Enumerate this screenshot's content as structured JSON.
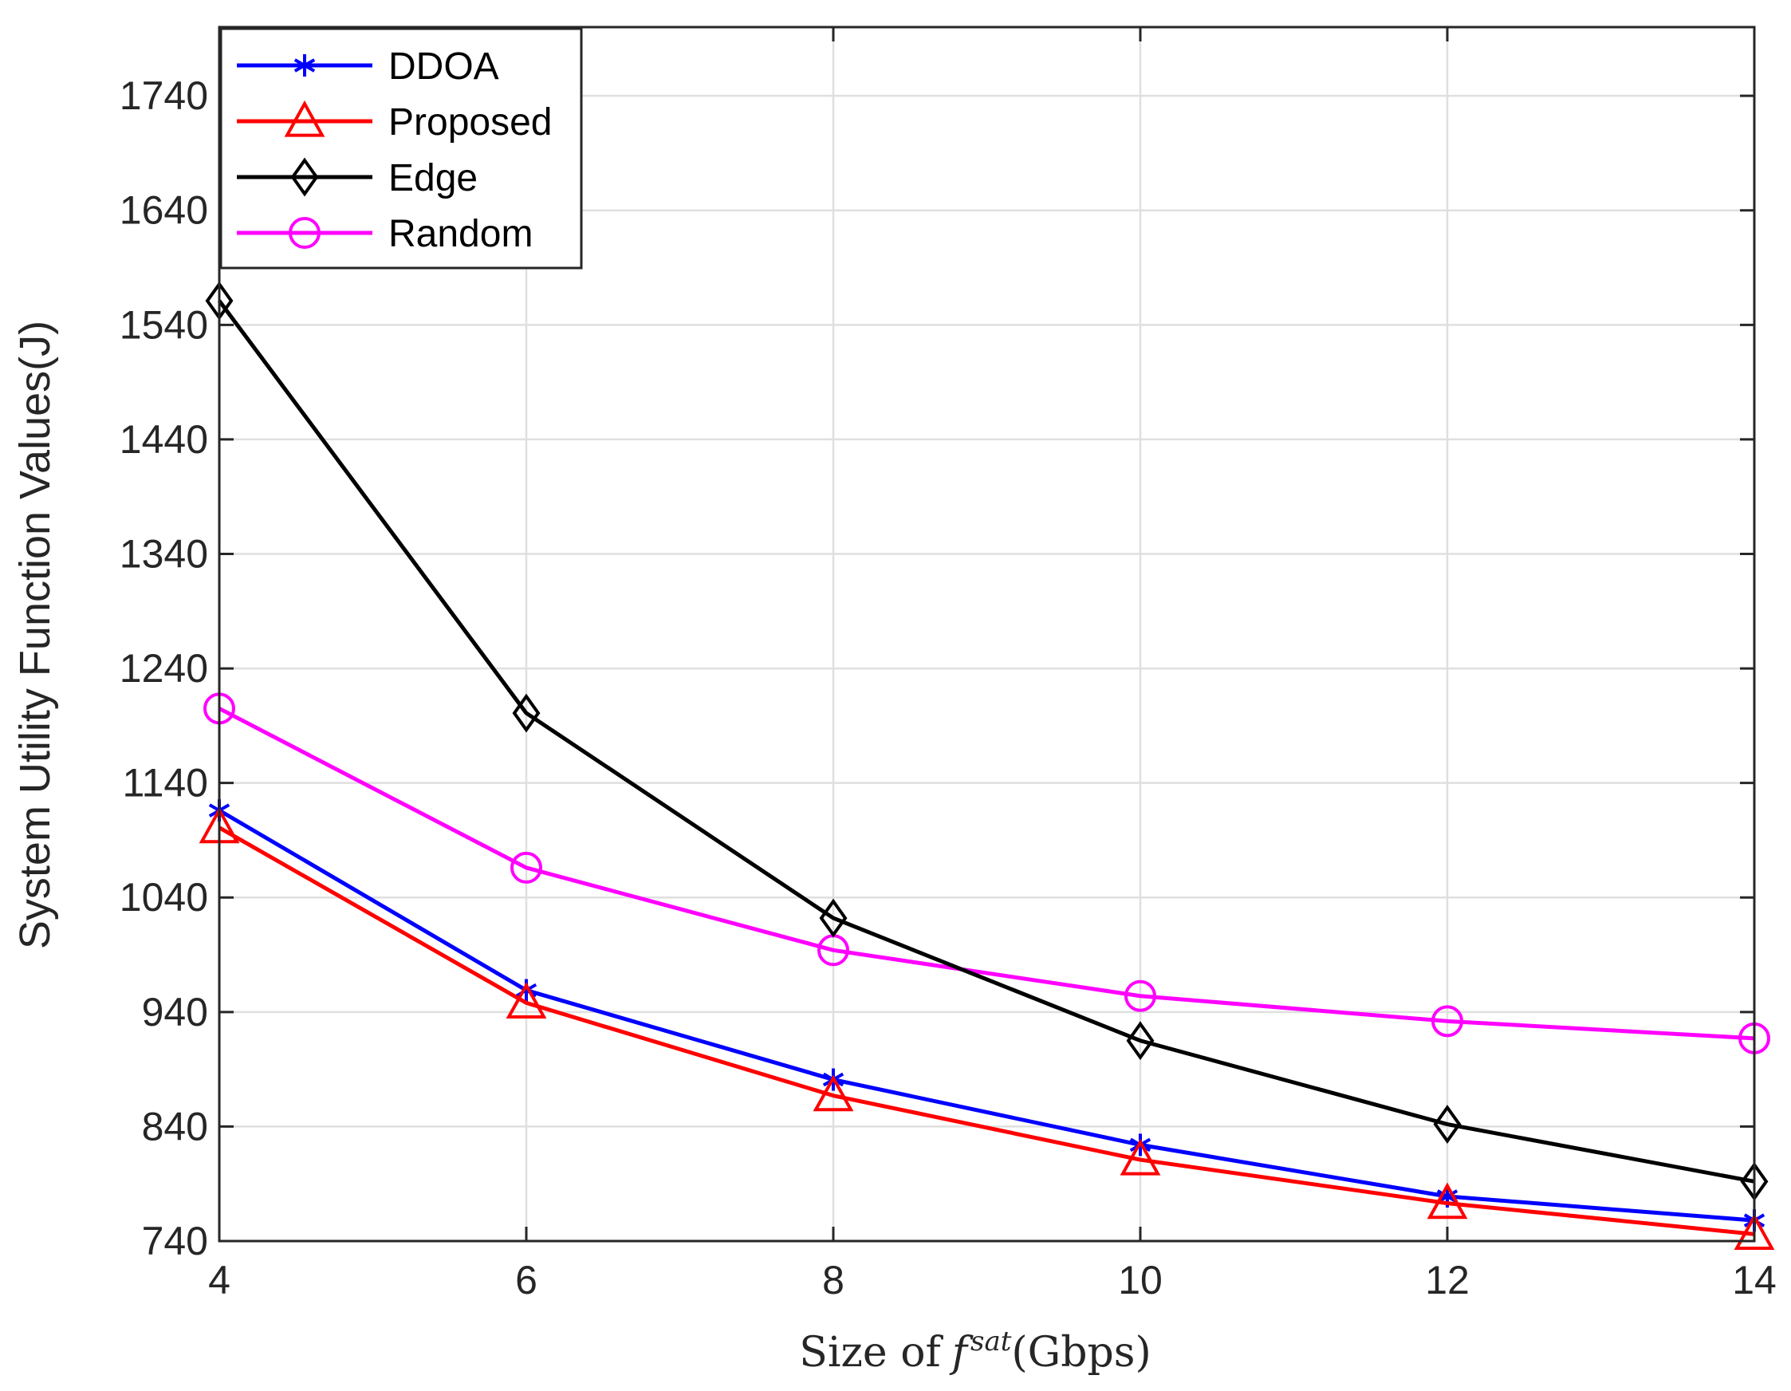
{
  "chart_data": {
    "type": "line",
    "title": "",
    "xlabel": "Size of",
    "xlabel_math": "f",
    "xlabel_superscript": "sat",
    "xlabel_unit": "(Gbps)",
    "ylabel": "System Utility Function Values(J)",
    "xlim": [
      4,
      14
    ],
    "ylim": [
      740,
      1800
    ],
    "xticks": [
      "4",
      "6",
      "8",
      "10",
      "12",
      "14"
    ],
    "yticks": [
      "740",
      "840",
      "940",
      "1040",
      "1140",
      "1240",
      "1340",
      "1440",
      "1540",
      "1640",
      "1740"
    ],
    "x": [
      4,
      6,
      8,
      10,
      12,
      14
    ],
    "grid": true,
    "legend_position": "top-left",
    "series": [
      {
        "name": "DDOA",
        "color": "#0000ff",
        "marker": "asterisk",
        "values": [
          1116,
          959,
          881,
          824,
          779,
          758
        ]
      },
      {
        "name": "Proposed",
        "color": "#ff0000",
        "marker": "triangle",
        "values": [
          1101,
          948,
          867,
          811,
          773,
          746
        ]
      },
      {
        "name": "Edge",
        "color": "#000000",
        "marker": "diamond",
        "values": [
          1561,
          1201,
          1022,
          915,
          842,
          792
        ]
      },
      {
        "name": "Random",
        "color": "#ff00ff",
        "marker": "circle",
        "values": [
          1205,
          1066,
          994,
          954,
          932,
          917
        ]
      }
    ]
  }
}
